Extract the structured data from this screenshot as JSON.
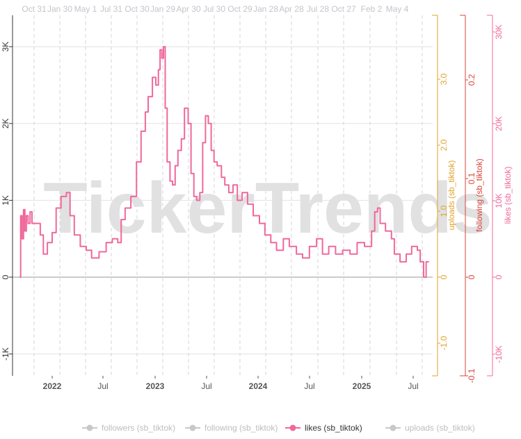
{
  "watermark": "TickerTrends",
  "colors": {
    "likes": "#f0689b",
    "uploads": "#e0a32a",
    "following": "#d9443a",
    "grid": "#e2e2e2",
    "vgrid": "#d4d4d4",
    "legend_inactive": "#c8c8c8",
    "watermark": "#e1e1e1"
  },
  "legend": [
    {
      "label": "followers  (sb_tiktok)",
      "active": false
    },
    {
      "label": "following  (sb_tiktok)",
      "active": false
    },
    {
      "label": "likes  (sb_tiktok)",
      "active": true
    },
    {
      "label": "uploads  (sb_tiktok)",
      "active": false
    }
  ],
  "chart_data": {
    "type": "line",
    "x_bottom_ticks": [
      "2022",
      "Jul",
      "2023",
      "Jul",
      "2024",
      "Jul",
      "2025",
      "Jul"
    ],
    "x_top_ticks": [
      "Oct 31",
      "Jan 30",
      "May 1",
      "Jul 31",
      "Oct 30",
      "Jan 29",
      "Apr 30",
      "Jul 30",
      "Oct 29",
      "Jan 28",
      "Apr 28",
      "Jul 28",
      "Oct 27",
      "Feb 2",
      "May 4"
    ],
    "y_left": {
      "ticks": [
        "-1K",
        "0",
        "1K",
        "2K",
        "3K"
      ],
      "ylim": [
        -1300,
        3000
      ]
    },
    "y_uploads": {
      "label": "uploads  (sb_tiktok)",
      "ticks": [
        "-1.0",
        "0",
        "1.0",
        "2.0",
        "3.0"
      ]
    },
    "y_following": {
      "label": "following  (sb_tiktok)",
      "ticks": [
        "-0.1",
        "0",
        "0.1",
        "0.2"
      ]
    },
    "y_likes": {
      "label": "likes  (sb_tiktok)",
      "ticks": [
        "-10K",
        "0",
        "10K",
        "20K",
        "30K"
      ]
    },
    "series": [
      {
        "name": "likes  (sb_tiktok)",
        "axis": "left",
        "points": [
          [
            "2021-09-08",
            0
          ],
          [
            "2021-09-12",
            800
          ],
          [
            "2021-09-17",
            500
          ],
          [
            "2021-09-22",
            880
          ],
          [
            "2021-09-27",
            600
          ],
          [
            "2021-10-02",
            800
          ],
          [
            "2021-10-08",
            700
          ],
          [
            "2021-10-15",
            850
          ],
          [
            "2021-10-22",
            700
          ],
          [
            "2021-11-01",
            700
          ],
          [
            "2021-11-20",
            550
          ],
          [
            "2021-12-01",
            300
          ],
          [
            "2021-12-15",
            450
          ],
          [
            "2022-01-01",
            580
          ],
          [
            "2022-01-15",
            900
          ],
          [
            "2022-02-01",
            1050
          ],
          [
            "2022-02-20",
            1100
          ],
          [
            "2022-03-05",
            800
          ],
          [
            "2022-03-20",
            550
          ],
          [
            "2022-04-10",
            400
          ],
          [
            "2022-05-01",
            350
          ],
          [
            "2022-05-20",
            250
          ],
          [
            "2022-06-15",
            330
          ],
          [
            "2022-07-10",
            450
          ],
          [
            "2022-08-01",
            500
          ],
          [
            "2022-08-20",
            450
          ],
          [
            "2022-09-01",
            750
          ],
          [
            "2022-09-15",
            900
          ],
          [
            "2022-10-05",
            1050
          ],
          [
            "2022-10-25",
            1500
          ],
          [
            "2022-11-10",
            1900
          ],
          [
            "2022-11-25",
            2150
          ],
          [
            "2022-12-05",
            2350
          ],
          [
            "2022-12-20",
            2600
          ],
          [
            "2023-01-01",
            2500
          ],
          [
            "2023-01-10",
            2700
          ],
          [
            "2023-01-16",
            2960
          ],
          [
            "2023-01-22",
            2850
          ],
          [
            "2023-01-28",
            3000
          ],
          [
            "2023-02-03",
            2200
          ],
          [
            "2023-02-10",
            1500
          ],
          [
            "2023-02-20",
            1250
          ],
          [
            "2023-03-01",
            1200
          ],
          [
            "2023-03-10",
            1450
          ],
          [
            "2023-03-20",
            1650
          ],
          [
            "2023-04-01",
            1800
          ],
          [
            "2023-04-12",
            2200
          ],
          [
            "2023-04-25",
            2000
          ],
          [
            "2023-05-05",
            1350
          ],
          [
            "2023-05-15",
            1050
          ],
          [
            "2023-05-25",
            1000
          ],
          [
            "2023-06-05",
            1100
          ],
          [
            "2023-06-15",
            1750
          ],
          [
            "2023-06-25",
            2100
          ],
          [
            "2023-07-05",
            2000
          ],
          [
            "2023-07-15",
            1650
          ],
          [
            "2023-07-25",
            1500
          ],
          [
            "2023-08-05",
            1450
          ],
          [
            "2023-08-20",
            1300
          ],
          [
            "2023-09-01",
            1200
          ],
          [
            "2023-09-15",
            1100
          ],
          [
            "2023-09-30",
            1200
          ],
          [
            "2023-10-15",
            1000
          ],
          [
            "2023-11-01",
            1100
          ],
          [
            "2023-11-20",
            950
          ],
          [
            "2023-12-10",
            800
          ],
          [
            "2024-01-01",
            700
          ],
          [
            "2024-01-20",
            550
          ],
          [
            "2024-02-10",
            450
          ],
          [
            "2024-03-01",
            350
          ],
          [
            "2024-03-25",
            500
          ],
          [
            "2024-04-15",
            400
          ],
          [
            "2024-05-10",
            300
          ],
          [
            "2024-06-01",
            250
          ],
          [
            "2024-06-25",
            400
          ],
          [
            "2024-07-20",
            500
          ],
          [
            "2024-08-10",
            300
          ],
          [
            "2024-09-01",
            400
          ],
          [
            "2024-09-25",
            300
          ],
          [
            "2024-10-20",
            350
          ],
          [
            "2024-11-15",
            300
          ],
          [
            "2024-12-10",
            450
          ],
          [
            "2025-01-05",
            400
          ],
          [
            "2025-01-30",
            600
          ],
          [
            "2025-02-10",
            850
          ],
          [
            "2025-02-20",
            900
          ],
          [
            "2025-03-01",
            700
          ],
          [
            "2025-03-20",
            600
          ],
          [
            "2025-04-10",
            500
          ],
          [
            "2025-04-20",
            300
          ],
          [
            "2025-05-10",
            200
          ],
          [
            "2025-06-01",
            300
          ],
          [
            "2025-06-20",
            400
          ],
          [
            "2025-07-10",
            350
          ],
          [
            "2025-07-20",
            200
          ],
          [
            "2025-08-01",
            0
          ],
          [
            "2025-08-10",
            200
          ],
          [
            "2025-08-20",
            200
          ]
        ]
      }
    ]
  }
}
